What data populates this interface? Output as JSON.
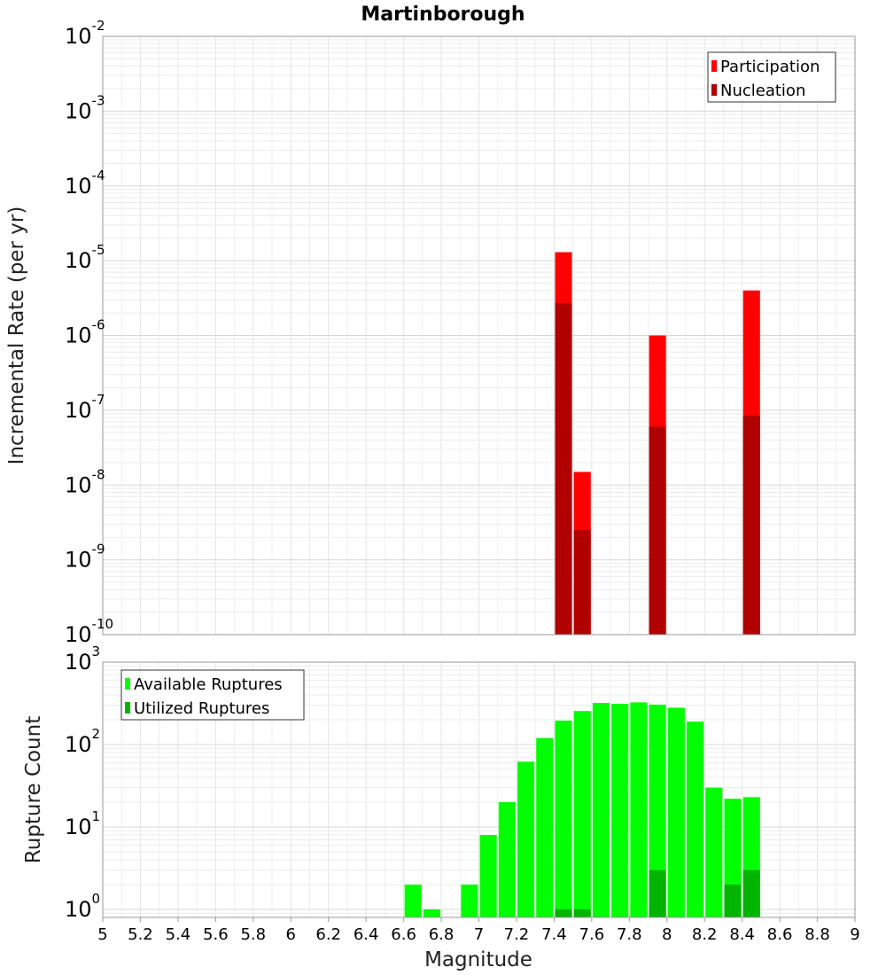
{
  "chart_data": [
    {
      "type": "bar",
      "title": "Martinborough",
      "ylabel": "Incremental Rate (per yr)",
      "xlabel": "",
      "y_scale": "log",
      "ylim": [
        1e-10,
        0.01
      ],
      "xlim": [
        5,
        9
      ],
      "grid": true,
      "legend_position": "top-right",
      "y_ticks": [
        {
          "base": "10",
          "exp": "-10"
        },
        {
          "base": "10",
          "exp": "-9"
        },
        {
          "base": "10",
          "exp": "-8"
        },
        {
          "base": "10",
          "exp": "-7"
        },
        {
          "base": "10",
          "exp": "-6"
        },
        {
          "base": "10",
          "exp": "-5"
        },
        {
          "base": "10",
          "exp": "-4"
        },
        {
          "base": "10",
          "exp": "-3"
        },
        {
          "base": "10",
          "exp": "-2"
        }
      ],
      "series": [
        {
          "name": "Participation",
          "color": "#ff0000",
          "points": [
            [
              7.45,
              1.3e-05
            ],
            [
              7.55,
              1.5e-08
            ],
            [
              7.95,
              1e-06
            ],
            [
              8.45,
              4e-06
            ]
          ]
        },
        {
          "name": "Nucleation",
          "color": "#b00000",
          "points": [
            [
              7.45,
              2.7e-06
            ],
            [
              7.55,
              2.5e-09
            ],
            [
              7.95,
              6e-08
            ],
            [
              8.45,
              8.5e-08
            ]
          ]
        }
      ]
    },
    {
      "type": "bar",
      "title": "",
      "ylabel": "Rupture Count",
      "xlabel": "Magnitude",
      "y_scale": "log",
      "ylim": [
        0.8,
        1000
      ],
      "xlim": [
        5,
        9
      ],
      "grid": true,
      "legend_position": "top-left",
      "y_ticks": [
        {
          "base": "10",
          "exp": "0",
          "value": 1
        },
        {
          "base": "10",
          "exp": "1",
          "value": 10
        },
        {
          "base": "10",
          "exp": "2",
          "value": 100
        },
        {
          "base": "10",
          "exp": "3",
          "value": 1000
        }
      ],
      "x_ticks": [
        "5",
        "5.2",
        "5.4",
        "5.6",
        "5.8",
        "6",
        "6.2",
        "6.4",
        "6.6",
        "6.8",
        "7",
        "7.2",
        "7.4",
        "7.6",
        "7.8",
        "8",
        "8.2",
        "8.4",
        "8.6",
        "8.8",
        "9"
      ],
      "series": [
        {
          "name": "Available Ruptures",
          "color": "#00ff00",
          "points": [
            [
              6.65,
              2
            ],
            [
              6.75,
              1
            ],
            [
              6.95,
              2
            ],
            [
              7.05,
              8
            ],
            [
              7.15,
              20
            ],
            [
              7.25,
              62
            ],
            [
              7.35,
              120
            ],
            [
              7.45,
              195
            ],
            [
              7.55,
              255
            ],
            [
              7.65,
              320
            ],
            [
              7.75,
              312
            ],
            [
              7.85,
              325
            ],
            [
              7.95,
              305
            ],
            [
              8.05,
              280
            ],
            [
              8.15,
              190
            ],
            [
              8.25,
              30
            ],
            [
              8.35,
              22
            ],
            [
              8.45,
              23
            ]
          ]
        },
        {
          "name": "Utilized Ruptures",
          "color": "#00b400",
          "points": [
            [
              7.45,
              1
            ],
            [
              7.55,
              1
            ],
            [
              7.95,
              3
            ],
            [
              8.35,
              2
            ],
            [
              8.45,
              3
            ]
          ]
        }
      ]
    }
  ]
}
